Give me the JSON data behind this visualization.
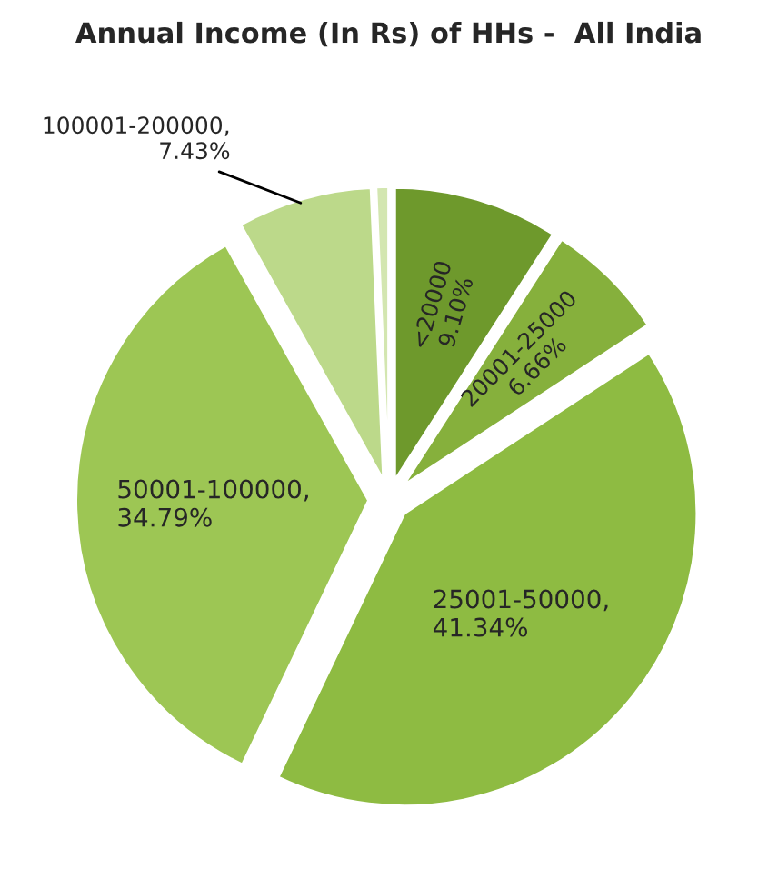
{
  "chart_data": {
    "type": "pie",
    "title": "Annual Income (In Rs) of HHs -  All India",
    "categories": [
      "<20000",
      "20001-25000",
      "25001-50000",
      "50001-100000",
      "100001-200000",
      null
    ],
    "values": [
      9.1,
      6.66,
      41.34,
      34.79,
      7.43,
      0.68
    ],
    "value_labels": [
      "\n9.10%",
      "\n6.66%",
      ",\n41.34%",
      ",\n34.79%",
      ",\n7.43%",
      null
    ],
    "colors": [
      "#6e992c",
      "#86b03c",
      "#8ebb42",
      "#9dc654",
      "#bcd98a",
      "#d3e6b0"
    ]
  }
}
